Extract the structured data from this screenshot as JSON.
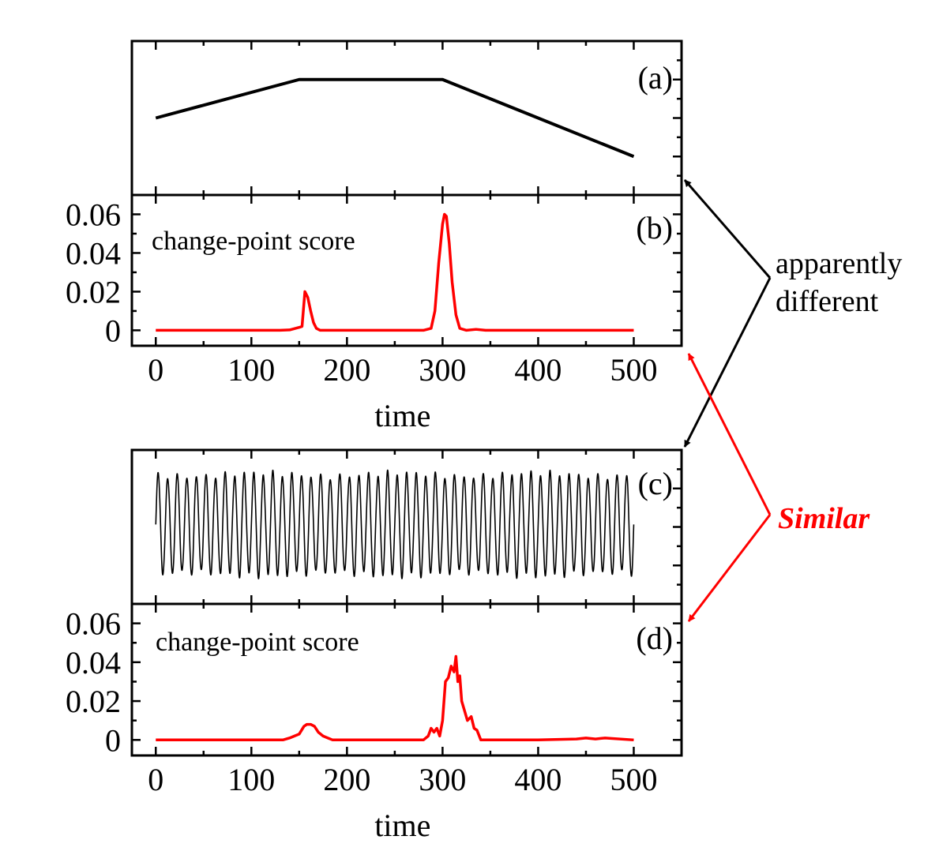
{
  "colors": {
    "axis": "#000000",
    "signal": "#000000",
    "score": "#ff0000",
    "annotation_black": "#000000",
    "annotation_red": "#ff0000"
  },
  "annotations": {
    "different_line1": "apparently",
    "different_line2": "different",
    "similar": "Similar"
  },
  "chart_data": [
    {
      "id": "a",
      "type": "line",
      "panel_label": "(a)",
      "y_axis_labels": false,
      "x_tick_labels": false,
      "xlim": [
        -25,
        550
      ],
      "ylim": [
        0,
        1
      ],
      "series": [
        {
          "x": [
            0,
            150,
            300,
            500
          ],
          "y": [
            0.5,
            0.75,
            0.75,
            0.25
          ]
        }
      ]
    },
    {
      "id": "b",
      "type": "line",
      "panel_label": "(b)",
      "inner_label": "change-point score",
      "xlabel": "time",
      "xlim": [
        -25,
        550
      ],
      "ylim": [
        -0.008,
        0.07
      ],
      "xticks": [
        0,
        100,
        200,
        300,
        400,
        500
      ],
      "yticks": [
        0,
        0.02,
        0.04,
        0.06
      ],
      "ytick_labels": [
        "0",
        "0.02",
        "0.04",
        "0.06"
      ],
      "series": [
        {
          "x": [
            0,
            130,
            140,
            150,
            153,
            156,
            159,
            162,
            165,
            168,
            172,
            180,
            280,
            288,
            292,
            296,
            300,
            302,
            304,
            307,
            310,
            314,
            318,
            325,
            335,
            345,
            500
          ],
          "y": [
            0,
            0,
            0.0002,
            0.0015,
            0.002,
            0.02,
            0.017,
            0.01,
            0.004,
            0.001,
            0,
            0,
            0,
            0.001,
            0.01,
            0.035,
            0.055,
            0.06,
            0.059,
            0.045,
            0.025,
            0.008,
            0.001,
            0,
            0.0005,
            0,
            0
          ]
        }
      ]
    },
    {
      "id": "c",
      "type": "line",
      "panel_label": "(c)",
      "y_axis_labels": false,
      "x_tick_labels": false,
      "xlim": [
        -25,
        550
      ],
      "ylim": [
        -1.6,
        1.5
      ],
      "series": [
        {
          "signal": "oscillation",
          "x_range": [
            0,
            500
          ],
          "cycles": 50
        }
      ]
    },
    {
      "id": "d",
      "type": "line",
      "panel_label": "(d)",
      "inner_label": "change-point score",
      "xlabel": "time",
      "xlim": [
        -25,
        550
      ],
      "ylim": [
        -0.008,
        0.07
      ],
      "xticks": [
        0,
        100,
        200,
        300,
        400,
        500
      ],
      "yticks": [
        0,
        0.02,
        0.04,
        0.06
      ],
      "ytick_labels": [
        "0",
        "0.02",
        "0.04",
        "0.06"
      ],
      "series": [
        {
          "x": [
            0,
            100,
            133,
            140,
            145,
            150,
            155,
            158,
            162,
            166,
            170,
            175,
            180,
            185,
            190,
            250,
            280,
            285,
            288,
            291,
            294,
            297,
            300,
            303,
            306,
            309,
            312,
            314,
            316,
            318,
            320,
            323,
            326,
            330,
            333,
            336,
            340,
            400,
            440,
            450,
            460,
            470,
            500
          ],
          "y": [
            0,
            0,
            0,
            0.001,
            0.002,
            0.003,
            0.007,
            0.008,
            0.008,
            0.007,
            0.004,
            0.002,
            0.001,
            0,
            0,
            0,
            0,
            0.002,
            0.006,
            0.004,
            0.006,
            0.002,
            0.01,
            0.03,
            0.032,
            0.038,
            0.035,
            0.043,
            0.03,
            0.033,
            0.02,
            0.015,
            0.01,
            0.012,
            0.006,
            0.005,
            0,
            0,
            0.0005,
            0.001,
            0.0005,
            0.001,
            0
          ]
        }
      ]
    }
  ]
}
